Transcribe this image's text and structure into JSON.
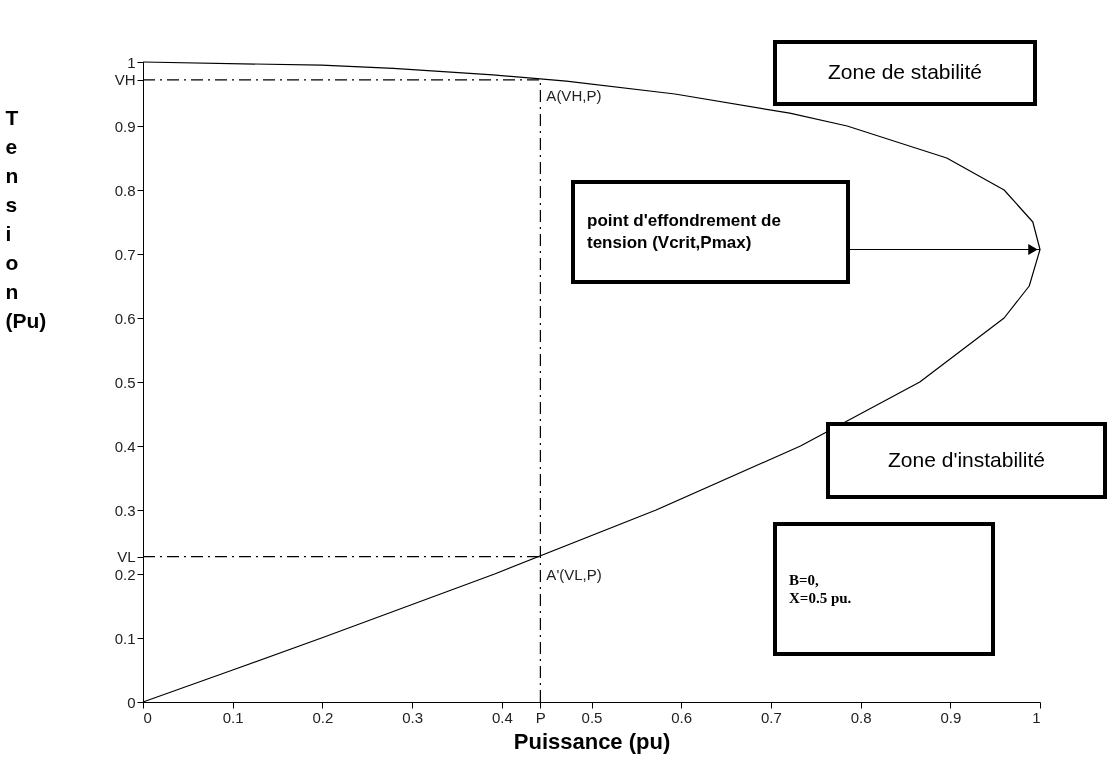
{
  "chart_data": {
    "type": "line",
    "xlabel": "Puissance (pu)",
    "ylabel": "Tension (Pu)",
    "series": [
      {
        "color": "#000000",
        "x": [
          0,
          0.199,
          0.279,
          0.39,
          0.472,
          0.593,
          0.721,
          0.785,
          0.896,
          0.96,
          0.992,
          1.0,
          0.988,
          0.96,
          0.866,
          0.733,
          0.572,
          0.392,
          0.199,
          0.1,
          0
        ],
        "values": [
          1,
          0.995,
          0.99,
          0.98,
          0.97,
          0.95,
          0.92,
          0.9,
          0.85,
          0.8,
          0.75,
          0.707,
          0.65,
          0.6,
          0.5,
          0.4,
          0.3,
          0.2,
          0.1,
          0.05,
          0
        ]
      }
    ],
    "xlim": [
      0,
      1
    ],
    "ylim": [
      0,
      1
    ],
    "xticks": [
      0,
      0.1,
      0.2,
      0.3,
      0.4,
      {
        "value": 0.443,
        "label": "P"
      },
      0.5,
      0.6,
      0.7,
      0.8,
      0.9,
      1
    ],
    "yticks": [
      0,
      0.1,
      0.2,
      {
        "value": 0.227,
        "label": "VL"
      },
      0.3,
      0.4,
      0.5,
      0.6,
      0.7,
      0.8,
      0.9,
      {
        "value": 0.972,
        "label": "VH"
      },
      1
    ],
    "ref_lines": [
      {
        "axis": "x",
        "value": 0.443,
        "line_style": "dashed"
      },
      {
        "axis": "y",
        "value": 0.972,
        "line_style": "dashed"
      },
      {
        "axis": "y",
        "value": 0.227,
        "line_style": "dashed"
      }
    ],
    "annotations": [
      {
        "text": "A(VH,P)",
        "x": 0.443,
        "y": 0.972
      },
      {
        "text": "A'(VL,P)",
        "x": 0.443,
        "y": 0.227
      },
      "point d'effondrement de\ntension (Vcrit,Pmax)",
      "Zone de stabilité",
      "Zone d'instabilité",
      "B=0,\nX=0.5 pu."
    ],
    "grid": false,
    "marker": "none",
    "line_style": "solid"
  }
}
